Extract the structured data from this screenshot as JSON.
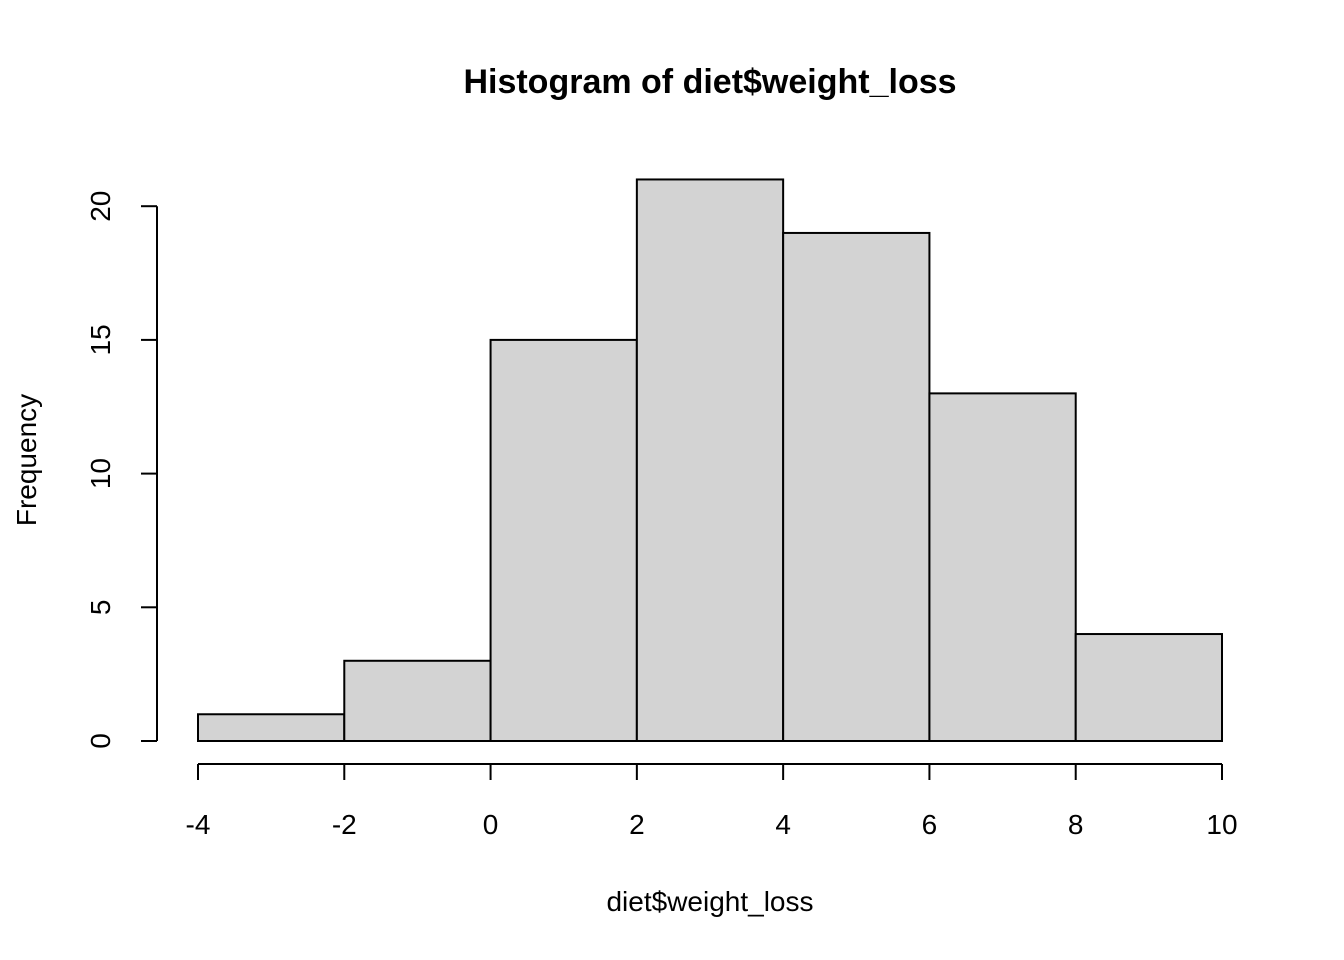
{
  "chart_data": {
    "type": "bar",
    "title": "Histogram of diet$weight_loss",
    "xlabel": "diet$weight_loss",
    "ylabel": "Frequency",
    "bins": [
      {
        "from": -4,
        "to": -2,
        "count": 1
      },
      {
        "from": -2,
        "to": 0,
        "count": 3
      },
      {
        "from": 0,
        "to": 2,
        "count": 15
      },
      {
        "from": 2,
        "to": 4,
        "count": 21
      },
      {
        "from": 4,
        "to": 6,
        "count": 19
      },
      {
        "from": 6,
        "to": 8,
        "count": 13
      },
      {
        "from": 8,
        "to": 10,
        "count": 4
      }
    ],
    "xlim": [
      -4,
      10
    ],
    "ylim": [
      0,
      21
    ],
    "x_ticks": [
      "-4",
      "-2",
      "0",
      "2",
      "4",
      "6",
      "8",
      "10"
    ],
    "y_ticks": [
      "0",
      "5",
      "10",
      "15",
      "20"
    ],
    "bar_color": "#d3d3d3",
    "grid": false
  }
}
